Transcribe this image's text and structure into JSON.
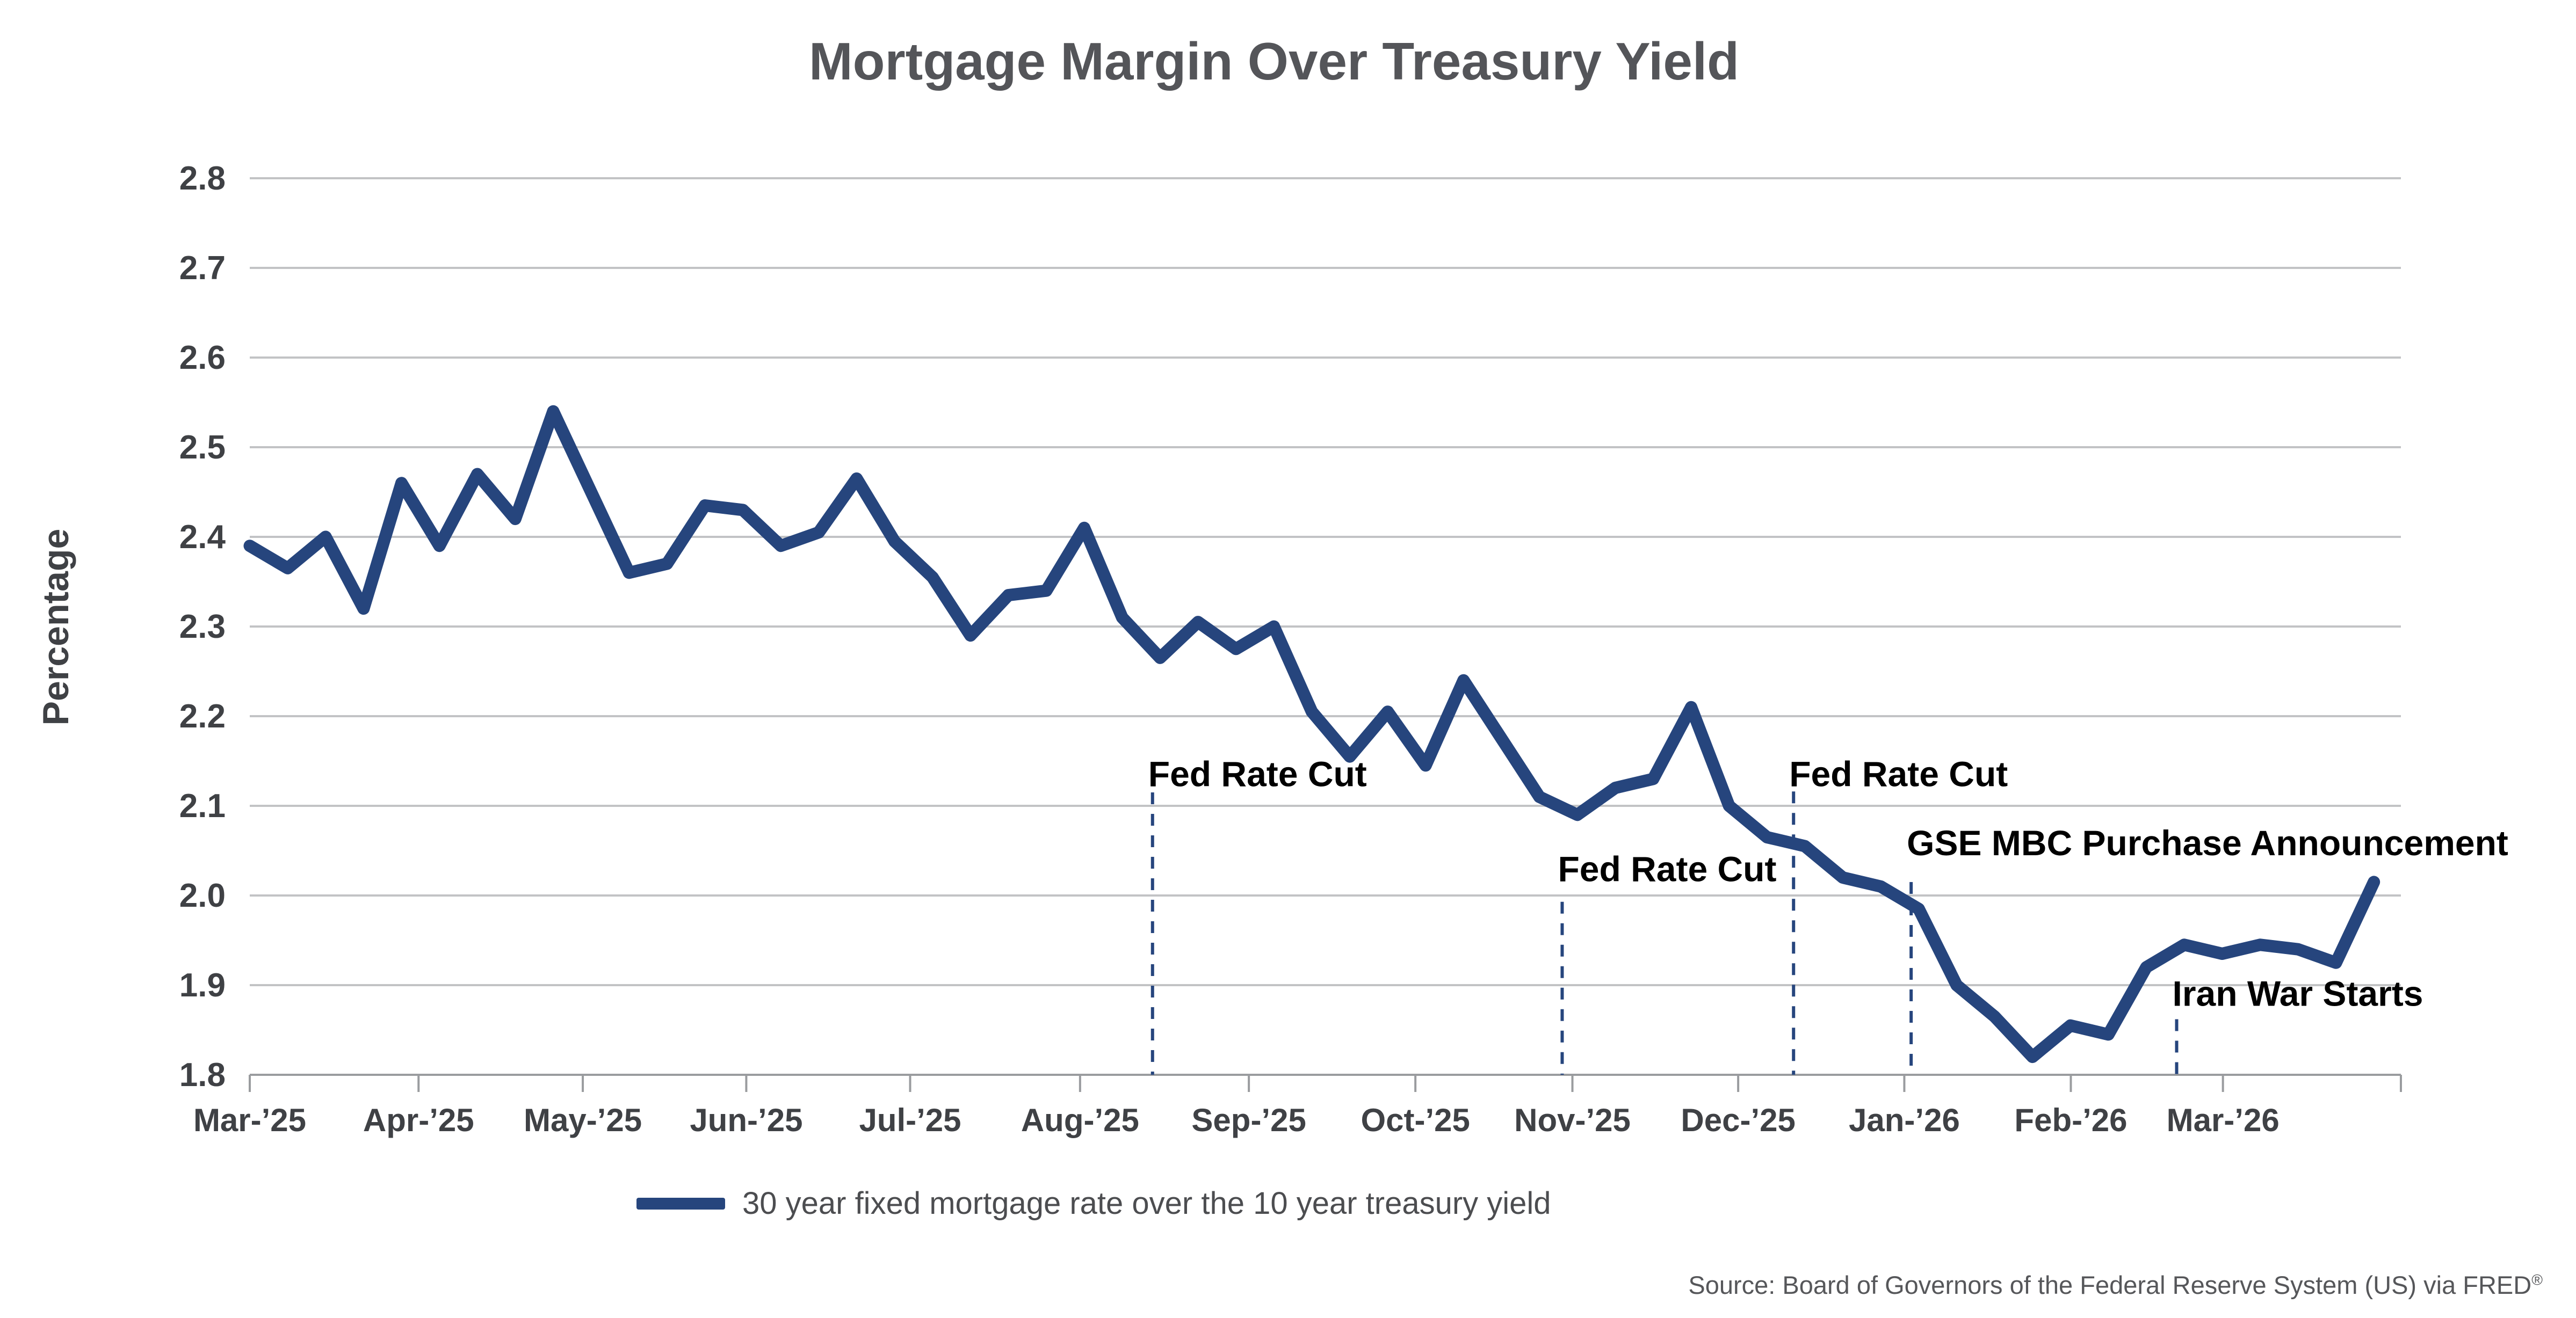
{
  "title": "Mortgage Margin Over Treasury Yield",
  "y_axis_label": "Percentage",
  "legend": {
    "series_label": "30 year fixed mortgage rate over the 10 year treasury yield"
  },
  "source": {
    "text": "Source: Board of Governors of the Federal Reserve System (US) via FRED",
    "mark": "®"
  },
  "colors": {
    "series": "#26457d",
    "grid": "#c2c3c5",
    "axis": "#9a9c9f",
    "title_text": "#545559",
    "tick_text": "#3f4145",
    "annotation_text": "#000000",
    "legend_text": "#4c4d50",
    "source_text": "#56575a"
  },
  "chart_data": {
    "type": "line",
    "title": "Mortgage Margin Over Treasury Yield",
    "xlabel": "",
    "ylabel": "Percentage",
    "ylim": [
      1.8,
      2.8
    ],
    "ytick_labels": [
      "1.8",
      "1.9",
      "2.0",
      "2.1",
      "2.2",
      "2.3",
      "2.4",
      "2.5",
      "2.6",
      "2.7",
      "2.8"
    ],
    "grid": "horizontal",
    "legend_position": "bottom-center",
    "x_unit": "weeks, Mar 2025 through late Mar 2026",
    "x_ticks": [
      {
        "label": "Mar-’25",
        "x": 0
      },
      {
        "label": "Apr-’25",
        "x": 4.45
      },
      {
        "label": "May-’25",
        "x": 8.78
      },
      {
        "label": "Jun-’25",
        "x": 13.09
      },
      {
        "label": "Jul-’25",
        "x": 17.41
      },
      {
        "label": "Aug-’25",
        "x": 21.89
      },
      {
        "label": "Sep-’25",
        "x": 26.34
      },
      {
        "label": "Oct-’25",
        "x": 30.73
      },
      {
        "label": "Nov-’25",
        "x": 34.87
      },
      {
        "label": "Dec-’25",
        "x": 39.24
      },
      {
        "label": "Jan-’26",
        "x": 43.62
      },
      {
        "label": "Feb-’26",
        "x": 48.01
      },
      {
        "label": "Mar-’26",
        "x": 52.02
      }
    ],
    "series": [
      {
        "name": "30 year fixed mortgage rate over the 10 year treasury yield",
        "color": "#26457d",
        "x_start": 0,
        "x_step": 1,
        "values": [
          2.39,
          2.365,
          2.4,
          2.32,
          2.46,
          2.39,
          2.47,
          2.42,
          2.54,
          2.45,
          2.36,
          2.37,
          2.435,
          2.43,
          2.39,
          2.405,
          2.465,
          2.395,
          2.355,
          2.29,
          2.335,
          2.34,
          2.41,
          2.31,
          2.265,
          2.305,
          2.275,
          2.3,
          2.205,
          2.155,
          2.205,
          2.145,
          2.24,
          2.175,
          2.11,
          2.09,
          2.12,
          2.13,
          2.21,
          2.1,
          2.065,
          2.055,
          2.02,
          2.01,
          1.985,
          1.9,
          1.865,
          1.82,
          1.855,
          1.845,
          1.92,
          1.945,
          1.935,
          1.945,
          1.94,
          1.925,
          2.015
        ]
      }
    ],
    "annotations": [
      {
        "label": "Fed Rate Cut",
        "x": 23.8,
        "line_top_value": 2.115,
        "label_value": 2.135
      },
      {
        "label": "Fed Rate Cut",
        "x": 34.6,
        "line_top_value": 1.993,
        "label_value": 2.029
      },
      {
        "label": "Fed Rate Cut",
        "x": 40.7,
        "line_top_value": 2.116,
        "label_value": 2.135
      },
      {
        "label": "GSE MBC Purchase Announcement",
        "x": 43.8,
        "line_top_value": 2.015,
        "label_value": 2.058
      },
      {
        "label": "Iran War Starts",
        "x": 50.8,
        "line_top_value": 1.862,
        "label_value": 1.89
      }
    ]
  }
}
